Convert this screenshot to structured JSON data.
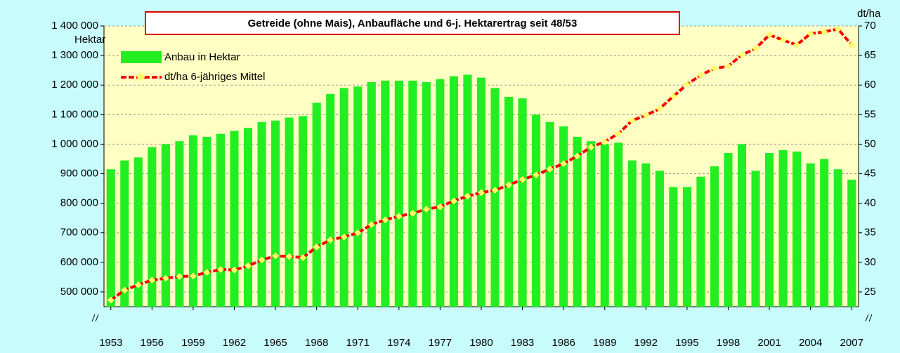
{
  "chart_data": {
    "type": "bar_line",
    "title": "Getreide (ohne Mais), Anbaufläche und 6-j. Hektarertrag seit 48/53",
    "ylabel": "Hektar",
    "y2label": "dt/ha",
    "categories": [
      "1953",
      null,
      null,
      "1956",
      null,
      null,
      "1959",
      null,
      null,
      "1962",
      null,
      null,
      "1965",
      null,
      null,
      "1968",
      null,
      null,
      "1971",
      null,
      null,
      "1974",
      null,
      null,
      "1977",
      null,
      null,
      "1980",
      null,
      null,
      "1983",
      null,
      null,
      "1986",
      null,
      null,
      "1989",
      null,
      null,
      "1992",
      null,
      null,
      "1995",
      null,
      null,
      "1998",
      null,
      null,
      "2001",
      null,
      null,
      "2004",
      null,
      null,
      "2007"
    ],
    "series": [
      {
        "name": "Anbau in Hektar",
        "type": "bar",
        "color": "#22ee22",
        "axis": "y",
        "values": [
          915000,
          945000,
          955000,
          990000,
          1000000,
          1010000,
          1030000,
          1025000,
          1035000,
          1045000,
          1055000,
          1075000,
          1080000,
          1090000,
          1095000,
          1140000,
          1170000,
          1190000,
          1195000,
          1210000,
          1215000,
          1215000,
          1215000,
          1210000,
          1220000,
          1230000,
          1235000,
          1225000,
          1190000,
          1160000,
          1155000,
          1100000,
          1075000,
          1060000,
          1025000,
          1010000,
          1000000,
          1005000,
          945000,
          935000,
          910000,
          855000,
          855000,
          890000,
          925000,
          970000,
          1000000,
          910000,
          970000,
          980000,
          975000,
          935000,
          950000,
          915000,
          880000
        ]
      },
      {
        "name": "dt/ha 6-jähriges Mittel",
        "type": "line",
        "color": "#ff0000",
        "marker_color": "#ffff66",
        "axis": "y2",
        "values": [
          23.6,
          25.3,
          26.2,
          27.0,
          27.3,
          27.6,
          27.7,
          28.3,
          28.8,
          28.7,
          29.4,
          30.4,
          31.1,
          31.0,
          30.8,
          32.6,
          33.8,
          34.3,
          35.0,
          36.4,
          37.2,
          37.8,
          38.3,
          39.0,
          39.4,
          40.4,
          41.2,
          41.8,
          42.2,
          43.1,
          44.0,
          44.8,
          45.8,
          46.7,
          48.0,
          49.5,
          50.4,
          51.8,
          54.0,
          54.9,
          56.0,
          58.1,
          60.1,
          61.7,
          62.8,
          63.2,
          65.1,
          66.2,
          68.5,
          67.6,
          66.8,
          68.7,
          69.0,
          69.5,
          66.8
        ]
      }
    ],
    "ylim": [
      450000,
      1400000
    ],
    "yticks": [
      {
        "value": 500000,
        "label": "500 000"
      },
      {
        "value": 600000,
        "label": "600 000"
      },
      {
        "value": 700000,
        "label": "700 000"
      },
      {
        "value": 800000,
        "label": "800 000"
      },
      {
        "value": 900000,
        "label": "900 000"
      },
      {
        "value": 1000000,
        "label": "1 000 000"
      },
      {
        "value": 1100000,
        "label": "1 100 000"
      },
      {
        "value": 1200000,
        "label": "1 200 000"
      },
      {
        "value": 1300000,
        "label": "1 300 000"
      },
      {
        "value": 1400000,
        "label": "1 400 000"
      }
    ],
    "y2lim": [
      22.5,
      70
    ],
    "y2ticks": [
      25,
      30,
      35,
      40,
      45,
      50,
      55,
      60,
      65,
      70
    ],
    "grid": true,
    "legend": "upper left"
  }
}
